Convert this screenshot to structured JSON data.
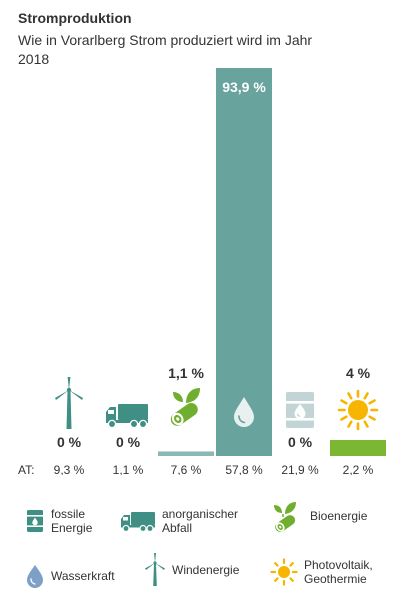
{
  "header": {
    "title": "Stromproduktion",
    "subtitle": "Wie in Vorarlberg Strom produziert wird im Jahr 2018"
  },
  "chart_data": {
    "type": "bar",
    "categories": [
      "Windenergie",
      "anorganischer Abfall",
      "Bioenergie",
      "Wasserkraft",
      "fossile Energie",
      "Photovoltaik, Geothermie"
    ],
    "values": [
      0,
      0,
      1.1,
      93.9,
      0,
      4
    ],
    "value_labels": [
      "0 %",
      "0 %",
      "1,1 %",
      "93,9 %",
      "0 %",
      "4 %"
    ],
    "colors": [
      "#8ab8b4",
      "#8ab8b4",
      "#8ab8b4",
      "#69a39d",
      "#8ab8b4",
      "#7ab733"
    ],
    "icons": [
      "wind-turbine-icon",
      "truck-icon",
      "bio-log-icon",
      "water-drop-icon",
      "oil-barrel-icon",
      "sun-icon"
    ],
    "comparison_label": "AT:",
    "comparison_values": [
      "9,3 %",
      "1,1 %",
      "7,6 %",
      "57,8 %",
      "21,9 %",
      "2,2 %"
    ],
    "ylim": [
      0,
      93.9
    ],
    "title": "Stromproduktion",
    "subtitle": "Wie in Vorarlberg Strom produziert wird im Jahr 2018"
  },
  "legend": {
    "fossil": "fossile Energie",
    "waste": "anorganischer Abfall",
    "bio": "Bioenergie",
    "water": "Wasserkraft",
    "wind": "Windenergie",
    "solar": "Photovoltaik, Geothermie"
  },
  "colors": {
    "teal": "#3f8f85",
    "teal_light": "#8ab8b4",
    "green": "#7ab733",
    "leaf": "#6fae2e",
    "yellow": "#f7b500",
    "drop_blue": "#7e9fc6"
  }
}
